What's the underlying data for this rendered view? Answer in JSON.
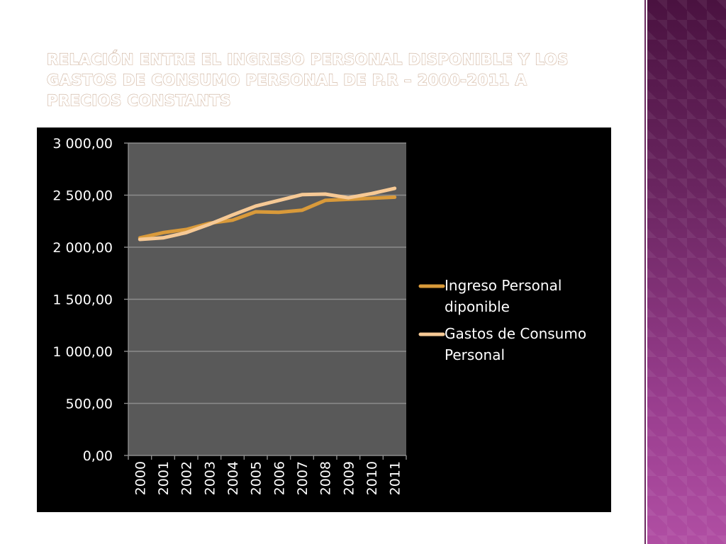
{
  "slide": {
    "title": "Relación entre el Ingreso Personal Disponible y los Gastos de Consumo Personal de P.R – 2000-2011 a precios constants"
  },
  "chart_data": {
    "type": "line",
    "title": "",
    "xlabel": "",
    "ylabel": "",
    "categories": [
      "2000",
      "2001",
      "2002",
      "2003",
      "2004",
      "2005",
      "2006",
      "2007",
      "2008",
      "2009",
      "2010",
      "2011"
    ],
    "ylim": [
      0,
      3000
    ],
    "yticks": [
      0,
      500,
      1000,
      1500,
      2000,
      2500,
      3000
    ],
    "ytick_labels": [
      "0,00",
      "500,00",
      "1 000,00",
      "1 500,00",
      "2 000,00",
      "2 500,00",
      "3 000,00"
    ],
    "grid": true,
    "legend_position": "right",
    "series": [
      {
        "name": "Ingreso Personal diponible",
        "color": "#d99a3a",
        "values": [
          2090,
          2140,
          2170,
          2230,
          2260,
          2340,
          2335,
          2355,
          2450,
          2460,
          2470,
          2480
        ]
      },
      {
        "name": "Gastos de Consumo Personal",
        "color": "#f6c995",
        "values": [
          2075,
          2090,
          2140,
          2220,
          2310,
          2395,
          2450,
          2505,
          2510,
          2475,
          2515,
          2565
        ]
      }
    ]
  }
}
